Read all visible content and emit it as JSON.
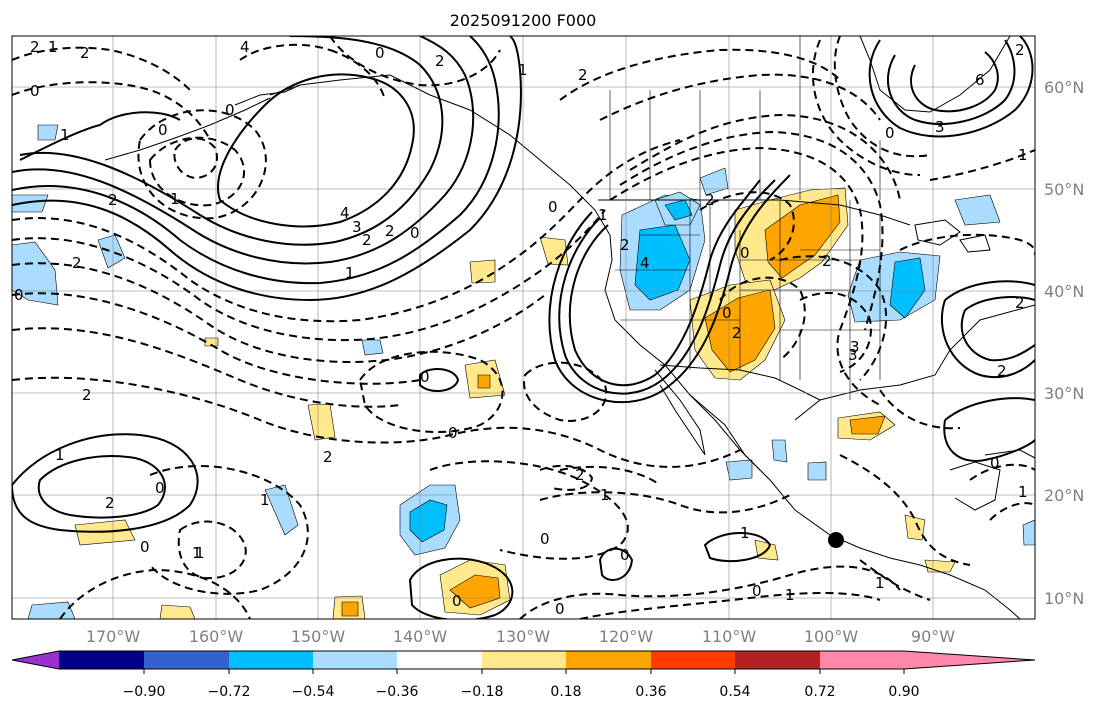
{
  "map": {
    "title": "2025091200 F000",
    "lon_labels": [
      "170°W",
      "160°W",
      "150°W",
      "140°W",
      "130°W",
      "120°W",
      "110°W",
      "100°W",
      "90°W"
    ],
    "lat_labels": [
      "60°N",
      "50°N",
      "40°N",
      "30°N",
      "20°N",
      "10°N"
    ],
    "marker": "black-dot",
    "contour_labels": [
      "2",
      "1",
      "0",
      "4",
      "2",
      "0",
      "2",
      "0",
      "1",
      "0",
      "2",
      "6",
      "3",
      "2",
      "0",
      "1",
      "2",
      "4",
      "3",
      "2",
      "1",
      "0",
      "2",
      "1",
      "0",
      "2",
      "4",
      "2",
      "0",
      "0",
      "2",
      "3",
      "2",
      "2",
      "1",
      "0",
      "0",
      "2",
      "1",
      "0",
      "0",
      "1",
      "2",
      "1",
      "2",
      "0",
      "0",
      "1",
      "0",
      "0",
      "1",
      "2",
      "0",
      "1",
      "0",
      "1",
      "1",
      "2",
      "3",
      "0",
      "1",
      "2",
      "1"
    ]
  },
  "colorbar": {
    "ticks": [
      "−0.90",
      "−0.72",
      "−0.54",
      "−0.36",
      "−0.18",
      "0.18",
      "0.36",
      "0.54",
      "0.72",
      "0.90"
    ],
    "colors": [
      "#9932cc",
      "#00008b",
      "#3461cc",
      "#00bfff",
      "#aadcff",
      "#ffffff",
      "#ffe98c",
      "#ffa500",
      "#ff3c00",
      "#b22222",
      "#ff88aa"
    ]
  }
}
